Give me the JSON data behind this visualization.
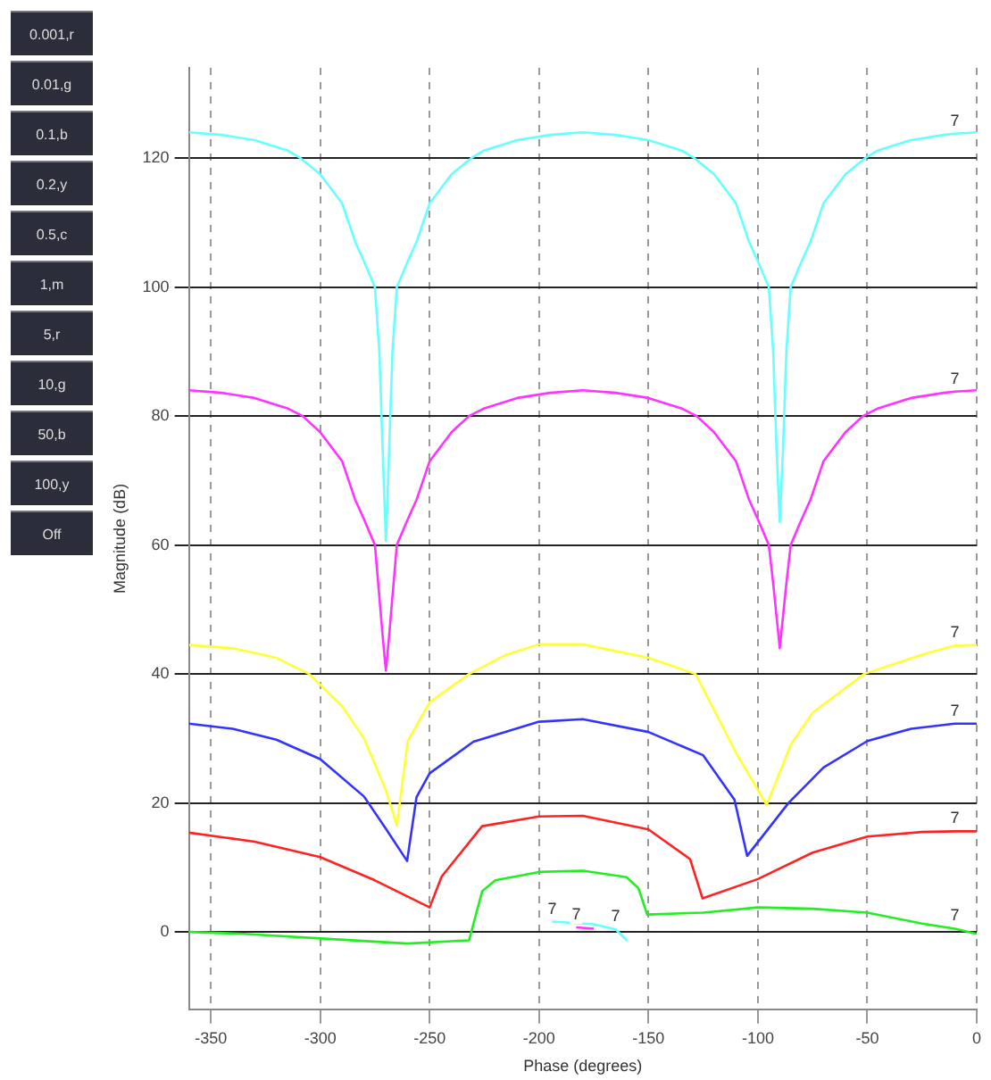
{
  "chart_data": {
    "type": "line",
    "xlabel": "Phase (degrees)",
    "ylabel": "Magnitude (dB)",
    "xlim": [
      -360,
      0
    ],
    "xticks": [
      -350,
      -300,
      -250,
      -200,
      -150,
      -100,
      -50,
      0
    ],
    "ylim": [
      -12,
      134
    ],
    "yticks": [
      0,
      20,
      40,
      60,
      80,
      100,
      120
    ],
    "grid": true,
    "legend": false,
    "marker": "none",
    "line_style": "solid",
    "series": [
      {
        "color": "#66ffff",
        "x": [
          -360,
          -345,
          -330,
          -315,
          -309,
          -300,
          -290,
          -284,
          -280,
          -275,
          -273,
          -271.5,
          -270,
          -268.5,
          -267,
          -265,
          -260,
          -256,
          -250,
          -240,
          -231,
          -225,
          -210,
          -195,
          -180,
          -165,
          -150,
          -135,
          -129,
          -120,
          -110,
          -104,
          -100,
          -95,
          -93,
          -91.5,
          -90,
          -88.5,
          -87,
          -85,
          -80,
          -76,
          -70,
          -60,
          -51,
          -45,
          -30,
          -15,
          -10,
          0
        ],
        "values": [
          124,
          123.6,
          122.8,
          121.2,
          120,
          117.5,
          113,
          107,
          104,
          100,
          90,
          75,
          60.6,
          75,
          90,
          100,
          104,
          107,
          113,
          117.5,
          120,
          121.2,
          122.8,
          123.6,
          124,
          123.6,
          122.8,
          121.2,
          120,
          117.5,
          113,
          107,
          104,
          100,
          90,
          75,
          63.6,
          75,
          90,
          100,
          104,
          107,
          113,
          117.5,
          120,
          121.2,
          122.8,
          123.6,
          123.8,
          124
        ]
      },
      {
        "color": "#ff33ff",
        "x": [
          -360,
          -345,
          -330,
          -315,
          -308,
          -300,
          -290,
          -284,
          -280,
          -275,
          -273,
          -271.5,
          -270,
          -268.5,
          -267,
          -265,
          -260,
          -256,
          -250,
          -240,
          -232,
          -225,
          -210,
          -195,
          -180,
          -165,
          -150,
          -135,
          -128,
          -120,
          -110,
          -104,
          -100,
          -95,
          -93,
          -91.5,
          -90,
          -88.5,
          -87,
          -85,
          -80,
          -76,
          -70,
          -60,
          -52,
          -45,
          -30,
          -15,
          -10,
          0
        ],
        "values": [
          84,
          83.6,
          82.8,
          81.2,
          80,
          77.5,
          73,
          67,
          64,
          60,
          52,
          46,
          40.5,
          46,
          52,
          60,
          64,
          67,
          73,
          77.5,
          80,
          81.2,
          82.8,
          83.6,
          84,
          83.6,
          82.8,
          81.2,
          80,
          77.5,
          73,
          67,
          64,
          60,
          54,
          49,
          44,
          49,
          54,
          60,
          64,
          67,
          73,
          77.5,
          80,
          81.2,
          82.8,
          83.6,
          83.8,
          84
        ]
      },
      {
        "color": "#ffff33",
        "x": [
          -360,
          -340,
          -320,
          -305,
          -290,
          -280,
          -270,
          -265,
          -260,
          -250,
          -232,
          -215,
          -200,
          -180,
          -150,
          -128.5,
          -110,
          -96,
          -85,
          -75,
          -51.5,
          -25,
          -10,
          0
        ],
        "values": [
          44.5,
          44,
          42.5,
          40,
          35,
          30,
          22,
          16.5,
          29.6,
          35.6,
          40,
          43,
          44.6,
          44.6,
          42.5,
          40,
          27.8,
          19.7,
          29,
          34,
          40,
          43,
          44.4,
          44.5
        ]
      },
      {
        "color": "#3333ff",
        "x": [
          -360,
          -340,
          -320,
          -300,
          -280,
          -270,
          -260.3,
          -256,
          -250,
          -230,
          -200,
          -180,
          -150,
          -125,
          -110.7,
          -104.9,
          -86,
          -70,
          -50,
          -30,
          -10,
          0
        ],
        "values": [
          32.3,
          31.5,
          29.8,
          26.8,
          21,
          16,
          11,
          20.9,
          24.6,
          29.5,
          32.6,
          33,
          31,
          27.4,
          20.5,
          11.8,
          20,
          25.5,
          29.6,
          31.5,
          32.3,
          32.3
        ]
      },
      {
        "color": "#ff2222",
        "x": [
          -360,
          -330,
          -300,
          -275,
          -250,
          -244.5,
          -226,
          -200,
          -180,
          -150,
          -131,
          -125.3,
          -100,
          -75,
          -50,
          -25,
          -10,
          0
        ],
        "values": [
          15.4,
          14,
          11.6,
          8,
          3.8,
          8.6,
          16.4,
          17.9,
          18,
          15.9,
          11.3,
          5.2,
          8.2,
          12.3,
          14.8,
          15.5,
          15.6,
          15.6
        ]
      },
      {
        "color": "#22ee22",
        "x": [
          -360,
          -335,
          -300,
          -260,
          -232,
          -226,
          -220,
          -200,
          -180,
          -160,
          -154.6,
          -150.6,
          -125,
          -100,
          -75,
          -50,
          -25,
          -10,
          0
        ],
        "values": [
          0,
          -0.3,
          -1,
          -1.8,
          -1.3,
          6.3,
          8,
          9.3,
          9.5,
          8.5,
          6.8,
          2.7,
          3,
          3.8,
          3.6,
          3,
          1.3,
          0.5,
          -0.3
        ]
      },
      {
        "color": "#66ffff",
        "x": [
          -194,
          -175,
          -165,
          -159.6
        ],
        "values": [
          1.6,
          1.2,
          0.4,
          -1.4
        ]
      },
      {
        "color": "#ff33ff",
        "x": [
          -183,
          -175
        ],
        "values": [
          0.7,
          0.5
        ]
      }
    ],
    "annotations": [
      "0.001,r",
      "0.01,g",
      "0.1,b",
      "0.2,y",
      "0.5,c",
      "1,m",
      "5,r",
      "10,g",
      "50,b",
      "100,y",
      "Off",
      {
        "text": "7",
        "x": -10,
        "y": 123.8
      },
      {
        "text": "7",
        "x": -10,
        "y": 83.8
      },
      {
        "text": "7",
        "x": -10,
        "y": 44.4
      },
      {
        "text": "7",
        "x": -10,
        "y": 32.3
      },
      {
        "text": "7",
        "x": -10,
        "y": 15.6
      },
      {
        "text": "7",
        "x": -10,
        "y": 0.5
      },
      {
        "text": "7",
        "x": -194,
        "y": 1.6
      },
      {
        "text": "7",
        "x": -183,
        "y": 0.7
      },
      {
        "text": "7",
        "x": -165,
        "y": 0.4
      }
    ]
  }
}
